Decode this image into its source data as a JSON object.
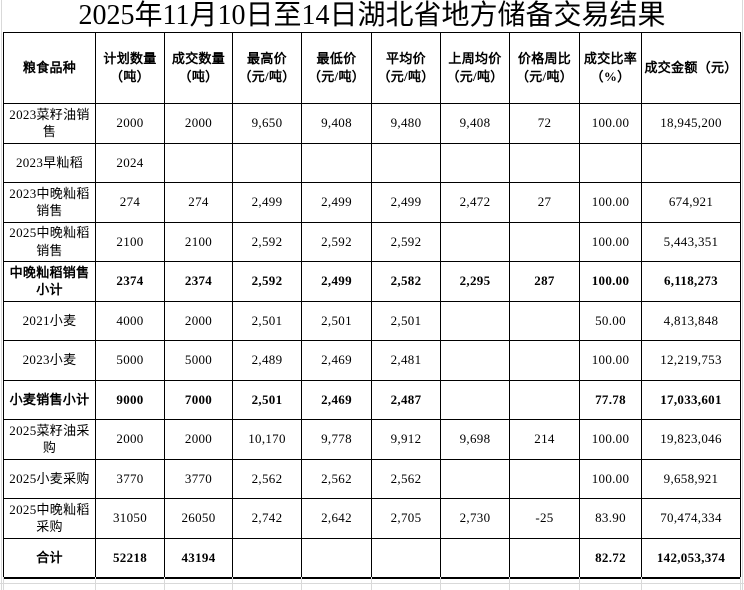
{
  "page": {
    "title": "2025年11月10日至14日湖北省地方储备交易结果"
  },
  "colors": {
    "border": "#000000",
    "grid_faint": "#d9d9d9",
    "text": "#000000",
    "background": "#ffffff"
  },
  "table": {
    "columns": [
      {
        "label": "粮食品种"
      },
      {
        "label": "计划数量\n（吨）"
      },
      {
        "label": "成交数量\n（吨）"
      },
      {
        "label": "最高价\n（元/吨）"
      },
      {
        "label": "最低价\n（元/吨）"
      },
      {
        "label": "平均价\n（元/吨）"
      },
      {
        "label": "上周均价\n（元/吨）"
      },
      {
        "label": "价格周比\n（元/吨）"
      },
      {
        "label": "成交比率\n（%）"
      },
      {
        "label": "成交金额（元）"
      }
    ],
    "rows": [
      {
        "bold": false,
        "cells": [
          "2023菜籽油销售",
          "2000",
          "2000",
          "9,650",
          "9,408",
          "9,480",
          "9,408",
          "72",
          "100.00",
          "18,945,200"
        ]
      },
      {
        "bold": false,
        "cells": [
          "2023早籼稻",
          "2024",
          "",
          "",
          "",
          "",
          "",
          "",
          "",
          ""
        ]
      },
      {
        "bold": false,
        "cells": [
          "2023中晚籼稻销售",
          "274",
          "274",
          "2,499",
          "2,499",
          "2,499",
          "2,472",
          "27",
          "100.00",
          "674,921"
        ]
      },
      {
        "bold": false,
        "cells": [
          "2025中晚籼稻销售",
          "2100",
          "2100",
          "2,592",
          "2,592",
          "2,592",
          "",
          "",
          "100.00",
          "5,443,351"
        ]
      },
      {
        "bold": true,
        "cells": [
          "中晚籼稻销售小计",
          "2374",
          "2374",
          "2,592",
          "2,499",
          "2,582",
          "2,295",
          "287",
          "100.00",
          "6,118,273"
        ]
      },
      {
        "bold": false,
        "cells": [
          "2021小麦",
          "4000",
          "2000",
          "2,501",
          "2,501",
          "2,501",
          "",
          "",
          "50.00",
          "4,813,848"
        ]
      },
      {
        "bold": false,
        "cells": [
          "2023小麦",
          "5000",
          "5000",
          "2,489",
          "2,469",
          "2,481",
          "",
          "",
          "100.00",
          "12,219,753"
        ]
      },
      {
        "bold": true,
        "cells": [
          "小麦销售小计",
          "9000",
          "7000",
          "2,501",
          "2,469",
          "2,487",
          "",
          "",
          "77.78",
          "17,033,601"
        ]
      },
      {
        "bold": false,
        "cells": [
          "2025菜籽油采购",
          "2000",
          "2000",
          "10,170",
          "9,778",
          "9,912",
          "9,698",
          "214",
          "100.00",
          "19,823,046"
        ]
      },
      {
        "bold": false,
        "cells": [
          "2025小麦采购",
          "3770",
          "3770",
          "2,562",
          "2,562",
          "2,562",
          "",
          "",
          "100.00",
          "9,658,921"
        ]
      },
      {
        "bold": false,
        "cells": [
          "2025中晚籼稻采购",
          "31050",
          "26050",
          "2,742",
          "2,642",
          "2,705",
          "2,730",
          "-25",
          "83.90",
          "70,474,334"
        ]
      },
      {
        "bold": true,
        "cells": [
          "合计",
          "52218",
          "43194",
          "",
          "",
          "",
          "",
          "",
          "82.72",
          "142,053,374"
        ]
      }
    ]
  }
}
